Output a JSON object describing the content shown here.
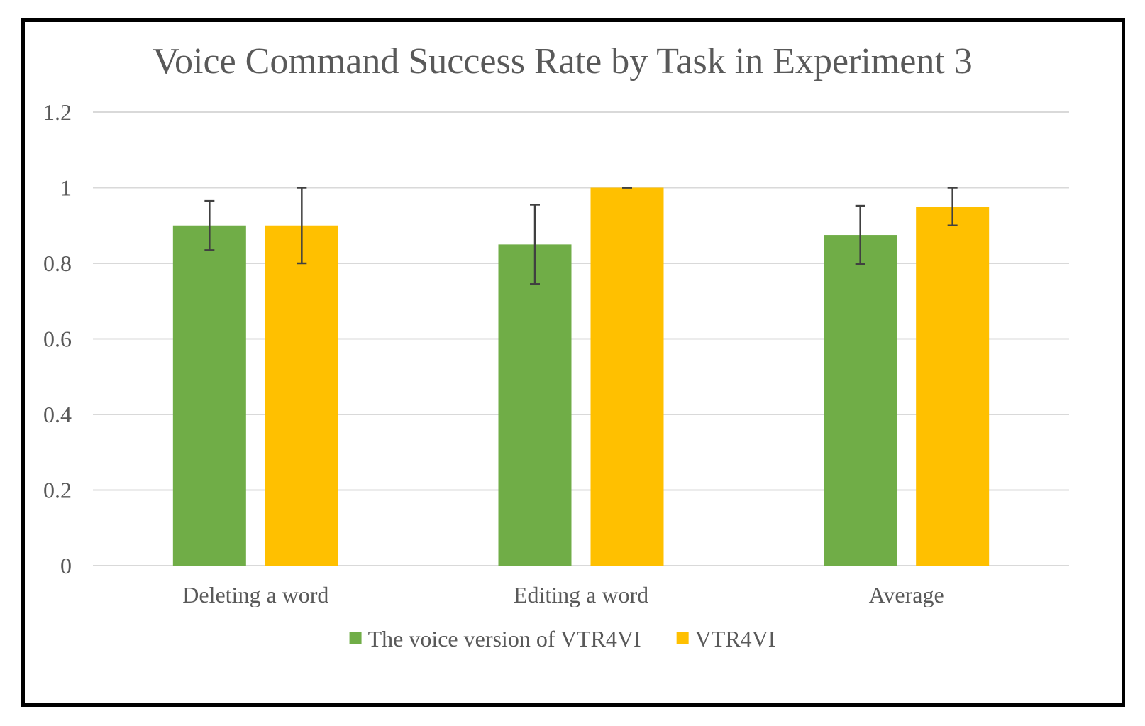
{
  "chart_data": {
    "type": "bar",
    "title": "Voice Command Success Rate by Task in Experiment 3",
    "categories": [
      "Deleting a word",
      "Editing a word",
      "Average"
    ],
    "series": [
      {
        "name": "The voice version of VTR4VI",
        "color": "#70ad47",
        "values": [
          0.9,
          0.85,
          0.875
        ],
        "errors": [
          0.065,
          0.105,
          0.077
        ]
      },
      {
        "name": "VTR4VI",
        "color": "#ffc000",
        "values": [
          0.9,
          1.0,
          0.95
        ],
        "errors": [
          0.1,
          0.0,
          0.05
        ]
      }
    ],
    "ylim": [
      0,
      1.2
    ],
    "yticks": [
      "0",
      "0.2",
      "0.4",
      "0.6",
      "0.8",
      "1",
      "1.2"
    ],
    "ytick_values": [
      0,
      0.2,
      0.4,
      0.6,
      0.8,
      1.0,
      1.2
    ],
    "grid": true,
    "legend_position": "bottom"
  }
}
